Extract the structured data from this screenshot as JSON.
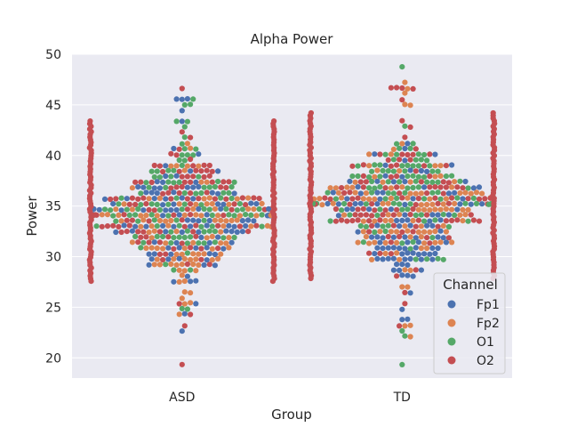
{
  "chart_data": {
    "type": "scatter",
    "subtype": "swarm",
    "title": "Alpha Power",
    "xlabel": "Group",
    "ylabel": "Power",
    "categories": [
      "ASD",
      "TD"
    ],
    "ylim": [
      18,
      50
    ],
    "yticks": [
      20,
      25,
      30,
      35,
      40,
      45,
      50
    ],
    "grid": true,
    "legend": {
      "title": "Channel",
      "placement": "lower-right",
      "entries": [
        "Fp1",
        "Fp2",
        "O1",
        "O2"
      ]
    },
    "series_colors": {
      "Fp1": "#4c72b0",
      "Fp2": "#dd8452",
      "O1": "#55a868",
      "O2": "#c44e52"
    },
    "groups": [
      {
        "category": "ASD",
        "range": [
          19.6,
          46.8
        ],
        "clip_range": [
          27.5,
          43.4
        ],
        "channel_means": {
          "Fp1": 33.5,
          "Fp2": 33.0,
          "O1": 35.0,
          "O2": 34.5
        }
      },
      {
        "category": "TD",
        "range": [
          19.2,
          48.7
        ],
        "clip_range": [
          27.6,
          44.2
        ],
        "channel_means": {
          "Fp1": 34.0,
          "Fp2": 34.5,
          "O1": 36.5,
          "O2": 35.5
        }
      }
    ],
    "colors": {
      "background": "#eaeaf2",
      "grid": "#ffffff",
      "text": "#262626"
    }
  }
}
